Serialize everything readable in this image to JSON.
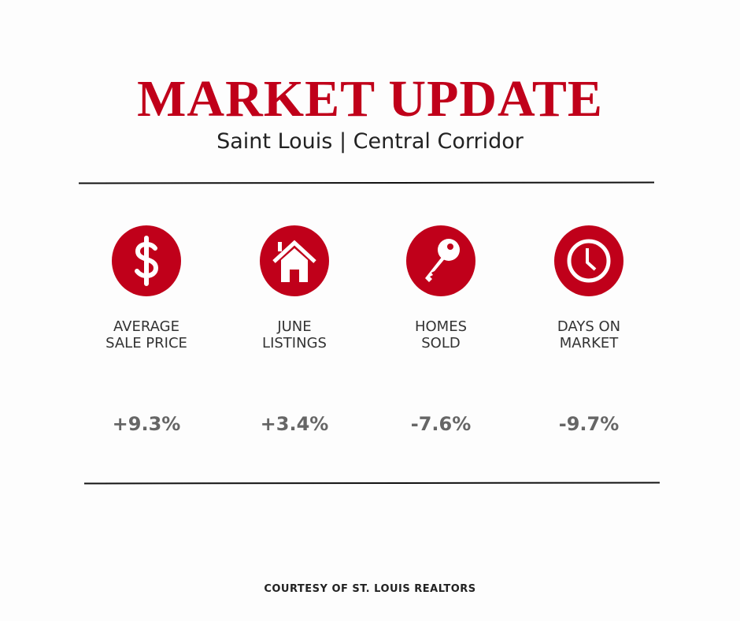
{
  "header": {
    "title": "MARKET UPDATE",
    "subtitle": "Saint Louis | Central Corridor"
  },
  "accent_color": "#c0001a",
  "stats": [
    {
      "icon": "dollar-icon",
      "label_line1": "AVERAGE",
      "label_line2": "SALE PRICE",
      "value": "+9.3%"
    },
    {
      "icon": "house-icon",
      "label_line1": "JUNE",
      "label_line2": "LISTINGS",
      "value": "+3.4%"
    },
    {
      "icon": "key-icon",
      "label_line1": "HOMES",
      "label_line2": "SOLD",
      "value": "-7.6%"
    },
    {
      "icon": "clock-icon",
      "label_line1": "DAYS ON",
      "label_line2": "MARKET",
      "value": "-9.7%"
    }
  ],
  "footer": "COURTESY OF ST. LOUIS REALTORS"
}
